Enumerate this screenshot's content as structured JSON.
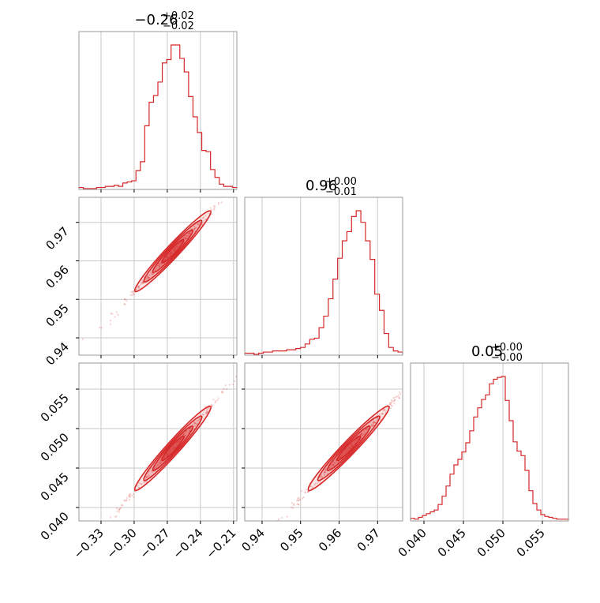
{
  "chart_data": {
    "type": "corner",
    "color": "#d62728",
    "grid": true,
    "parameters": [
      {
        "range": [
          -0.35,
          -0.207
        ],
        "ticks": [
          -0.33,
          -0.3,
          -0.27,
          -0.24,
          -0.21
        ],
        "tick_labels": [
          "−0.33",
          "−0.30",
          "−0.27",
          "−0.24",
          "−0.21"
        ],
        "title_main": "−0.26",
        "title_plus": "+0.02",
        "title_minus": "−0.02"
      },
      {
        "range": [
          0.9355,
          0.9765
        ],
        "ticks": [
          0.94,
          0.95,
          0.96,
          0.97
        ],
        "tick_labels": [
          "0.94",
          "0.95",
          "0.96",
          "0.97"
        ],
        "title_main": "0.96",
        "title_plus": "+0.00",
        "title_minus": "−0.01"
      },
      {
        "range": [
          0.0383,
          0.0583
        ],
        "ticks": [
          0.04,
          0.045,
          0.05,
          0.055
        ],
        "tick_labels": [
          "0.040",
          "0.045",
          "0.050",
          "0.055"
        ],
        "title_main": "0.05",
        "title_plus": "+0.00",
        "title_minus": "−0.00"
      }
    ],
    "histograms": [
      {
        "param": 0,
        "counts": [
          1,
          0,
          0,
          0,
          1,
          1,
          2,
          2,
          3,
          2,
          5,
          6,
          7,
          16,
          24,
          56,
          77,
          83,
          95,
          112,
          115,
          128,
          128,
          116,
          104,
          82,
          64,
          50,
          34,
          33,
          17,
          10,
          4,
          2,
          2,
          1
        ]
      },
      {
        "param": 1,
        "counts": [
          1,
          1,
          0,
          1,
          2,
          2,
          3,
          3,
          3,
          4,
          4,
          5,
          6,
          9,
          13,
          14,
          23,
          33,
          48,
          65,
          83,
          98,
          106,
          119,
          124,
          114,
          98,
          82,
          52,
          38,
          18,
          6,
          3,
          2
        ]
      },
      {
        "param": 2,
        "counts": [
          2,
          1,
          3,
          5,
          7,
          9,
          11,
          17,
          26,
          37,
          50,
          60,
          66,
          74,
          84,
          97,
          112,
          122,
          131,
          136,
          148,
          153,
          155,
          156,
          130,
          108,
          85,
          75,
          70,
          54,
          32,
          18,
          11,
          6,
          4,
          3,
          2,
          1,
          1,
          1
        ]
      }
    ],
    "scatter_pairs": [
      {
        "x_param": 0,
        "y_param": 1
      },
      {
        "x_param": 0,
        "y_param": 2
      },
      {
        "x_param": 1,
        "y_param": 2
      }
    ]
  }
}
